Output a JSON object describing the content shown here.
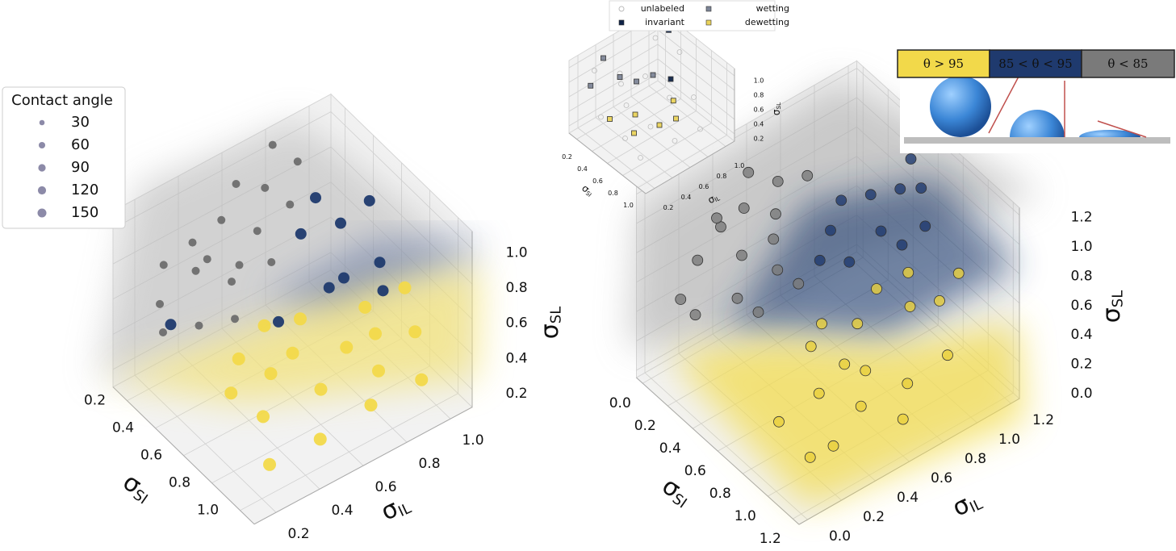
{
  "chart_data": [
    {
      "type": "scatter3d",
      "xlabel": [
        "σ",
        "SI"
      ],
      "ylabel": [
        "σ",
        "IL"
      ],
      "zlabel": [
        "σ",
        "SL"
      ],
      "xlim": [
        0.1,
        1.1
      ],
      "ylim": [
        0.1,
        1.1
      ],
      "zlim": [
        0.1,
        1.1
      ],
      "xticks": [
        0.2,
        0.4,
        0.6,
        0.8,
        {
          "value": 1.0,
          "label": "1.0"
        }
      ],
      "yticks": [
        0.2,
        0.4,
        0.6,
        0.8,
        {
          "value": 1.0,
          "label": "1.0"
        }
      ],
      "zticks": [
        0.2,
        0.4,
        0.6,
        0.8,
        {
          "value": 1.0,
          "label": "1.0"
        }
      ],
      "grid": true,
      "size_legend": {
        "title": "Contact angle",
        "values": [
          30,
          60,
          90,
          120,
          150
        ],
        "color": "#8c8aa8"
      },
      "series": [
        {
          "color": "#6e6e6e",
          "marker": "circle",
          "points": [
            [
              0.15,
              0.3,
              0.7
            ],
            [
              0.2,
              0.4,
              0.8
            ],
            [
              0.25,
              0.5,
              0.9
            ],
            [
              0.2,
              0.6,
              1.0
            ],
            [
              0.3,
              0.35,
              0.75
            ],
            [
              0.15,
              0.5,
              0.6
            ],
            [
              0.35,
              0.6,
              0.85
            ],
            [
              0.25,
              0.7,
              0.95
            ],
            [
              0.4,
              0.45,
              0.7
            ],
            [
              0.3,
              0.55,
              0.65
            ],
            [
              0.2,
              0.25,
              0.55
            ],
            [
              0.45,
              0.6,
              0.75
            ],
            [
              0.35,
              0.75,
              0.9
            ],
            [
              0.15,
              0.8,
              1.05
            ],
            [
              0.5,
              0.4,
              0.6
            ],
            [
              0.3,
              0.2,
              0.5
            ],
            [
              0.25,
              0.85,
              1.0
            ],
            [
              0.4,
              0.3,
              0.55
            ]
          ]
        },
        {
          "color": "#1f3a6e",
          "marker": "circle",
          "points": [
            [
              0.3,
              0.9,
              0.8
            ],
            [
              0.5,
              0.9,
              0.5
            ],
            [
              0.4,
              0.95,
              0.7
            ],
            [
              0.55,
              0.8,
              0.55
            ],
            [
              0.6,
              1.0,
              0.6
            ],
            [
              0.45,
              1.05,
              0.8
            ],
            [
              0.5,
              0.6,
              0.45
            ],
            [
              0.35,
              0.8,
              0.7
            ],
            [
              0.7,
              0.95,
              0.55
            ],
            [
              0.2,
              0.3,
              0.4
            ]
          ]
        },
        {
          "color": "#f2d94a",
          "marker": "circle",
          "points": [
            [
              0.8,
              0.6,
              0.3
            ],
            [
              0.6,
              0.5,
              0.3
            ],
            [
              0.9,
              0.8,
              0.35
            ],
            [
              0.7,
              0.4,
              0.2
            ],
            [
              1.0,
              0.7,
              0.3
            ],
            [
              0.5,
              0.7,
              0.4
            ],
            [
              0.65,
              0.9,
              0.45
            ],
            [
              0.85,
              1.0,
              0.4
            ],
            [
              0.95,
              0.5,
              0.2
            ],
            [
              0.55,
              0.35,
              0.25
            ],
            [
              0.75,
              0.75,
              0.4
            ],
            [
              0.4,
              0.6,
              0.35
            ],
            [
              1.05,
              0.9,
              0.35
            ],
            [
              0.6,
              0.6,
              0.35
            ],
            [
              0.9,
              0.3,
              0.15
            ],
            [
              0.7,
              1.05,
              0.5
            ],
            [
              0.45,
              0.45,
              0.3
            ],
            [
              0.8,
              0.85,
              0.45
            ]
          ]
        }
      ]
    },
    {
      "type": "scatter3d",
      "xlabel": [
        "σ",
        "SI"
      ],
      "ylabel": [
        "σ",
        "IL"
      ],
      "zlabel": [
        "σ",
        "SL"
      ],
      "xlim": [
        -0.05,
        1.25
      ],
      "ylim": [
        -0.05,
        1.25
      ],
      "zlim": [
        -0.05,
        1.25
      ],
      "xticks": [
        {
          "value": 0,
          "label": "0.0"
        },
        0.2,
        0.4,
        0.6,
        0.8,
        {
          "value": 1.0,
          "label": "1.0"
        },
        1.2
      ],
      "yticks": [
        {
          "value": 0,
          "label": "0.0"
        },
        0.2,
        0.4,
        0.6,
        0.8,
        {
          "value": 1.0,
          "label": "1.0"
        },
        1.2
      ],
      "zticks": [
        {
          "value": 0,
          "label": "0.0"
        },
        0.2,
        0.4,
        0.6,
        0.8,
        {
          "value": 1.0,
          "label": "1.0"
        },
        1.2
      ],
      "grid": true,
      "colorbar": [
        {
          "label": "θ > 95",
          "color": "#f2d94a"
        },
        {
          "label": "85 < θ < 95",
          "color": "#1f3a6e"
        },
        {
          "label": "θ < 85",
          "color": "#7a7a7a"
        }
      ],
      "series": [
        {
          "color": "#7a7a7a",
          "marker": "circle",
          "points": [
            [
              0.1,
              0.2,
              0.7
            ],
            [
              0.15,
              0.3,
              0.9
            ],
            [
              0.2,
              0.4,
              1.0
            ],
            [
              0.1,
              0.5,
              1.1
            ],
            [
              0.25,
              0.35,
              0.75
            ],
            [
              0.1,
              0.1,
              0.5
            ],
            [
              0.3,
              0.5,
              0.8
            ],
            [
              0.2,
              0.6,
              1.05
            ],
            [
              0.35,
              0.25,
              0.6
            ],
            [
              0.15,
              0.15,
              0.4
            ],
            [
              0.4,
              0.45,
              0.7
            ],
            [
              0.3,
              0.7,
              1.1
            ],
            [
              0.05,
              0.35,
              0.85
            ],
            [
              0.45,
              0.3,
              0.55
            ],
            [
              0.25,
              0.55,
              0.9
            ],
            [
              0.5,
              0.5,
              0.65
            ]
          ]
        },
        {
          "color": "#1f3a6e",
          "marker": "circle",
          "points": [
            [
              0.3,
              0.9,
              0.8
            ],
            [
              0.4,
              1.0,
              0.85
            ],
            [
              0.5,
              1.1,
              0.9
            ],
            [
              0.6,
              1.15,
              0.95
            ],
            [
              0.35,
              0.8,
              0.7
            ],
            [
              0.55,
              0.95,
              0.75
            ],
            [
              0.45,
              1.2,
              1.0
            ],
            [
              0.7,
              1.1,
              0.8
            ],
            [
              0.5,
              0.8,
              0.6
            ],
            [
              0.65,
              1.0,
              0.7
            ],
            [
              0.4,
              0.7,
              0.6
            ]
          ]
        },
        {
          "color": "#e8cf3c",
          "marker": "circle",
          "points": [
            [
              0.8,
              0.4,
              0.2
            ],
            [
              0.9,
              0.6,
              0.3
            ],
            [
              1.0,
              0.5,
              0.2
            ],
            [
              0.7,
              0.7,
              0.4
            ],
            [
              0.85,
              0.9,
              0.5
            ],
            [
              1.1,
              0.7,
              0.3
            ],
            [
              0.6,
              0.5,
              0.3
            ],
            [
              0.95,
              1.0,
              0.55
            ],
            [
              1.05,
              0.3,
              0.1
            ],
            [
              0.75,
              0.2,
              0.1
            ],
            [
              0.65,
              0.85,
              0.5
            ],
            [
              1.15,
              0.9,
              0.4
            ],
            [
              0.9,
              1.15,
              0.6
            ],
            [
              1.0,
              0.2,
              0.05
            ],
            [
              0.55,
              0.6,
              0.35
            ],
            [
              0.8,
              0.55,
              0.3
            ],
            [
              1.2,
              0.6,
              0.2
            ],
            [
              0.7,
              1.0,
              0.55
            ]
          ]
        }
      ]
    },
    {
      "type": "scatter3d",
      "xlabel": [
        "σ",
        "SI"
      ],
      "ylabel": [
        "σ",
        "IL"
      ],
      "zlabel": [
        "σ",
        "SL"
      ],
      "xlim": [
        0.1,
        1.1
      ],
      "ylim": [
        0.1,
        1.1
      ],
      "zlim": [
        0.1,
        1.1
      ],
      "xticks": [
        0.2,
        0.4,
        0.6,
        0.8,
        {
          "value": 1.0,
          "label": "1.0"
        }
      ],
      "yticks": [
        0.2,
        0.4,
        0.6,
        0.8,
        {
          "value": 1.0,
          "label": "1.0"
        }
      ],
      "zticks": [
        0.2,
        0.4,
        0.6,
        0.8,
        {
          "value": 1.0,
          "label": "1.0"
        }
      ],
      "grid": true,
      "series": [
        {
          "name": "unlabeled",
          "color": "#bbbbbb",
          "marker": "circle",
          "filled": false,
          "points": [
            [
              0.2,
              0.3,
              0.9
            ],
            [
              0.3,
              0.5,
              0.8
            ],
            [
              0.5,
              0.4,
              0.6
            ],
            [
              0.4,
              0.7,
              0.7
            ],
            [
              0.6,
              0.8,
              0.5
            ],
            [
              0.7,
              0.5,
              0.4
            ],
            [
              0.8,
              0.9,
              0.6
            ],
            [
              0.3,
              0.9,
              1.0
            ],
            [
              0.9,
              0.6,
              0.3
            ],
            [
              0.5,
              1.0,
              0.9
            ],
            [
              0.2,
              0.6,
              0.5
            ],
            [
              1.0,
              0.8,
              0.4
            ],
            [
              0.6,
              0.3,
              0.3
            ],
            [
              0.4,
              0.2,
              0.5
            ],
            [
              0.8,
              0.3,
              0.2
            ]
          ]
        },
        {
          "name": "invariant",
          "color": "#0f2347",
          "marker": "square",
          "filled": true,
          "points": [
            [
              0.3,
              1.05,
              1.0
            ],
            [
              0.5,
              0.9,
              0.6
            ]
          ]
        },
        {
          "name": "wetting",
          "color": "#7d8597",
          "marker": "square",
          "filled": true,
          "points": [
            [
              0.2,
              0.4,
              1.0
            ],
            [
              0.3,
              0.5,
              0.75
            ],
            [
              0.4,
              0.6,
              0.7
            ],
            [
              0.15,
              0.3,
              0.65
            ],
            [
              0.5,
              0.7,
              0.8
            ]
          ]
        },
        {
          "name": "dewetting",
          "color": "#ead35a",
          "marker": "square",
          "filled": true,
          "points": [
            [
              0.6,
              0.4,
              0.3
            ],
            [
              0.7,
              0.6,
              0.35
            ],
            [
              0.5,
              0.5,
              0.4
            ],
            [
              0.8,
              0.7,
              0.45
            ],
            [
              0.4,
              0.3,
              0.4
            ],
            [
              0.65,
              0.8,
              0.5
            ]
          ]
        }
      ]
    }
  ]
}
